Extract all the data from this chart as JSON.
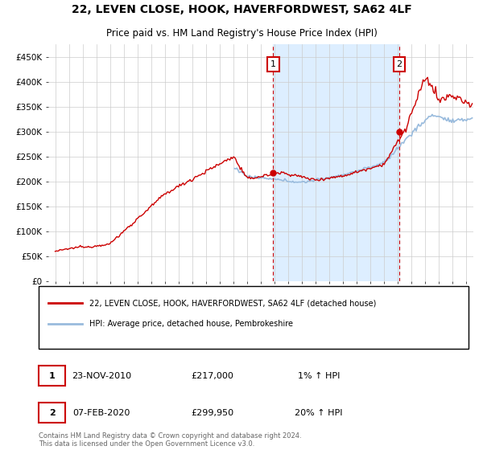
{
  "title1": "22, LEVEN CLOSE, HOOK, HAVERFORDWEST, SA62 4LF",
  "title2": "Price paid vs. HM Land Registry's House Price Index (HPI)",
  "ylabel_ticks": [
    "£0",
    "£50K",
    "£100K",
    "£150K",
    "£200K",
    "£250K",
    "£300K",
    "£350K",
    "£400K",
    "£450K"
  ],
  "ytick_values": [
    0,
    50000,
    100000,
    150000,
    200000,
    250000,
    300000,
    350000,
    400000,
    450000
  ],
  "ylim": [
    0,
    475000
  ],
  "xlim_start": 1994.5,
  "xlim_end": 2025.5,
  "marker1_x": 2010.9,
  "marker1_y": 217000,
  "marker1_label": "1",
  "marker1_date": "23-NOV-2010",
  "marker1_price": "£217,000",
  "marker1_hpi": "1% ↑ HPI",
  "marker2_x": 2020.1,
  "marker2_y": 299950,
  "marker2_label": "2",
  "marker2_date": "07-FEB-2020",
  "marker2_price": "£299,950",
  "marker2_hpi": "20% ↑ HPI",
  "legend_line1": "22, LEVEN CLOSE, HOOK, HAVERFORDWEST, SA62 4LF (detached house)",
  "legend_line2": "HPI: Average price, detached house, Pembrokeshire",
  "footer": "Contains HM Land Registry data © Crown copyright and database right 2024.\nThis data is licensed under the Open Government Licence v3.0.",
  "line_color": "#cc0000",
  "hpi_color": "#99bbdd",
  "highlight_color": "#ddeeff",
  "plot_bg": "#f5f5f5",
  "grid_color": "#cccccc",
  "hpi_start_year": 2008.0
}
